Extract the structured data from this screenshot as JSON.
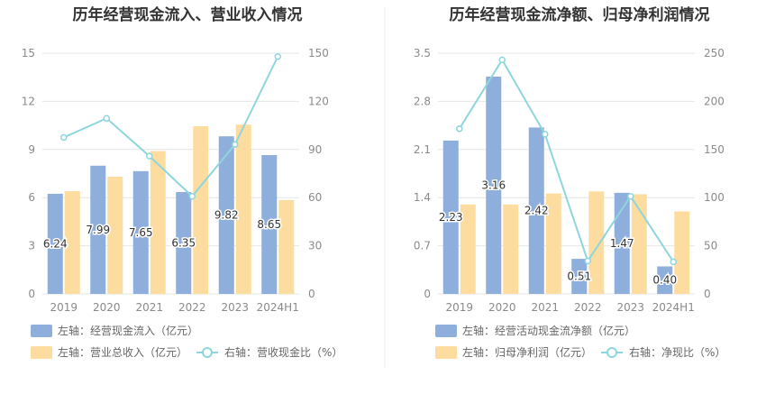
{
  "colors": {
    "bar_blue": "#8eaedc",
    "bar_orange": "#fddca0",
    "line": "#8ed6dd",
    "grid": "#e6e6e6",
    "divider": "#eeeeee"
  },
  "chart_data": [
    {
      "type": "bar",
      "title": "历年经营现金流入、营业收入情况",
      "categories": [
        "2019",
        "2020",
        "2021",
        "2022",
        "2023",
        "2024H1"
      ],
      "left_axis": {
        "ticks": [
          "0",
          "3",
          "6",
          "9",
          "12",
          "15"
        ],
        "ylim": [
          0,
          15
        ]
      },
      "right_axis": {
        "ticks": [
          "0",
          "30",
          "60",
          "90",
          "120",
          "150"
        ],
        "ylim": [
          0,
          150
        ]
      },
      "series": [
        {
          "name": "左轴：经营现金流入（亿元）",
          "kind": "bar",
          "axis": "left",
          "values": [
            6.24,
            7.99,
            7.65,
            6.35,
            9.82,
            8.65
          ],
          "labels": [
            "6.24",
            "7.99",
            "7.65",
            "6.35",
            "9.82",
            "8.65"
          ]
        },
        {
          "name": "左轴：营业总收入（亿元）",
          "kind": "bar",
          "axis": "left",
          "values": [
            6.4,
            7.3,
            8.9,
            10.45,
            10.55,
            5.85
          ]
        },
        {
          "name": "右轴：营收现金比（%）",
          "kind": "line",
          "axis": "right",
          "values": [
            97.5,
            109.4,
            85.9,
            60.8,
            93.1,
            147.9
          ]
        }
      ],
      "legend_position": "bottom-left"
    },
    {
      "type": "bar",
      "title": "历年经营现金流净额、归母净利润情况",
      "categories": [
        "2019",
        "2020",
        "2021",
        "2022",
        "2023",
        "2024H1"
      ],
      "left_axis": {
        "ticks": [
          "0",
          "0.7",
          "1.4",
          "2.1",
          "2.8",
          "3.5"
        ],
        "ylim": [
          0,
          3.5
        ]
      },
      "right_axis": {
        "ticks": [
          "0",
          "50",
          "100",
          "150",
          "200",
          "250"
        ],
        "ylim": [
          0,
          250
        ]
      },
      "series": [
        {
          "name": "左轴：经营活动现金流净额（亿元）",
          "kind": "bar",
          "axis": "left",
          "values": [
            2.23,
            3.16,
            2.42,
            0.51,
            1.47,
            0.4
          ],
          "labels": [
            "2.23",
            "3.16",
            "2.42",
            "0.51",
            "1.47",
            "0.40"
          ]
        },
        {
          "name": "左轴：归母净利润（亿元）",
          "kind": "bar",
          "axis": "left",
          "values": [
            1.3,
            1.3,
            1.46,
            1.49,
            1.45,
            1.2
          ]
        },
        {
          "name": "右轴：净现比（%）",
          "kind": "line",
          "axis": "right",
          "values": [
            171.5,
            243.1,
            165.8,
            34.2,
            101.4,
            33.3
          ]
        }
      ],
      "legend_position": "bottom-left"
    }
  ]
}
